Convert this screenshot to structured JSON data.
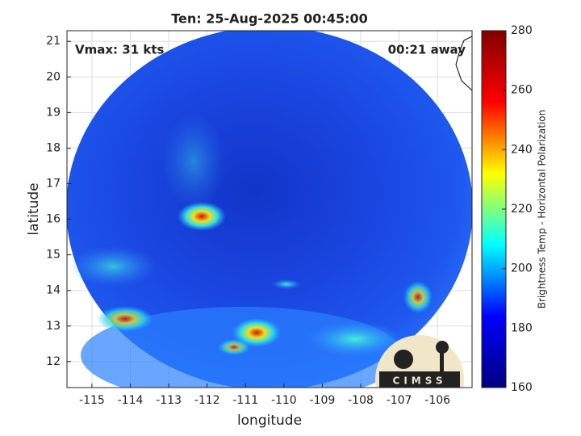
{
  "chart_data": {
    "type": "image",
    "title": "Ten: 25-Aug-2025 00:45:00",
    "x_label": "longitude",
    "y_label": "latitude",
    "annotations": {
      "left": "Vmax: 31 kts",
      "right": "00:21 away"
    },
    "xlim": [
      -115.65,
      -105.1
    ],
    "xticks": [
      -115,
      -114,
      -113,
      -112,
      -111,
      -110,
      -109,
      -108,
      -107,
      -106
    ],
    "ylim": [
      11.27,
      21.3
    ],
    "yticks": [
      12,
      13,
      14,
      15,
      16,
      17,
      18,
      19,
      20,
      21
    ],
    "grid": true,
    "colorbar": {
      "label": "Brightness Temp - Horizontal Polarization",
      "colormap": "jet",
      "lim": [
        160,
        280
      ],
      "ticks": [
        160,
        180,
        200,
        220,
        240,
        260,
        280
      ]
    },
    "logo_text": "CIMSS"
  }
}
